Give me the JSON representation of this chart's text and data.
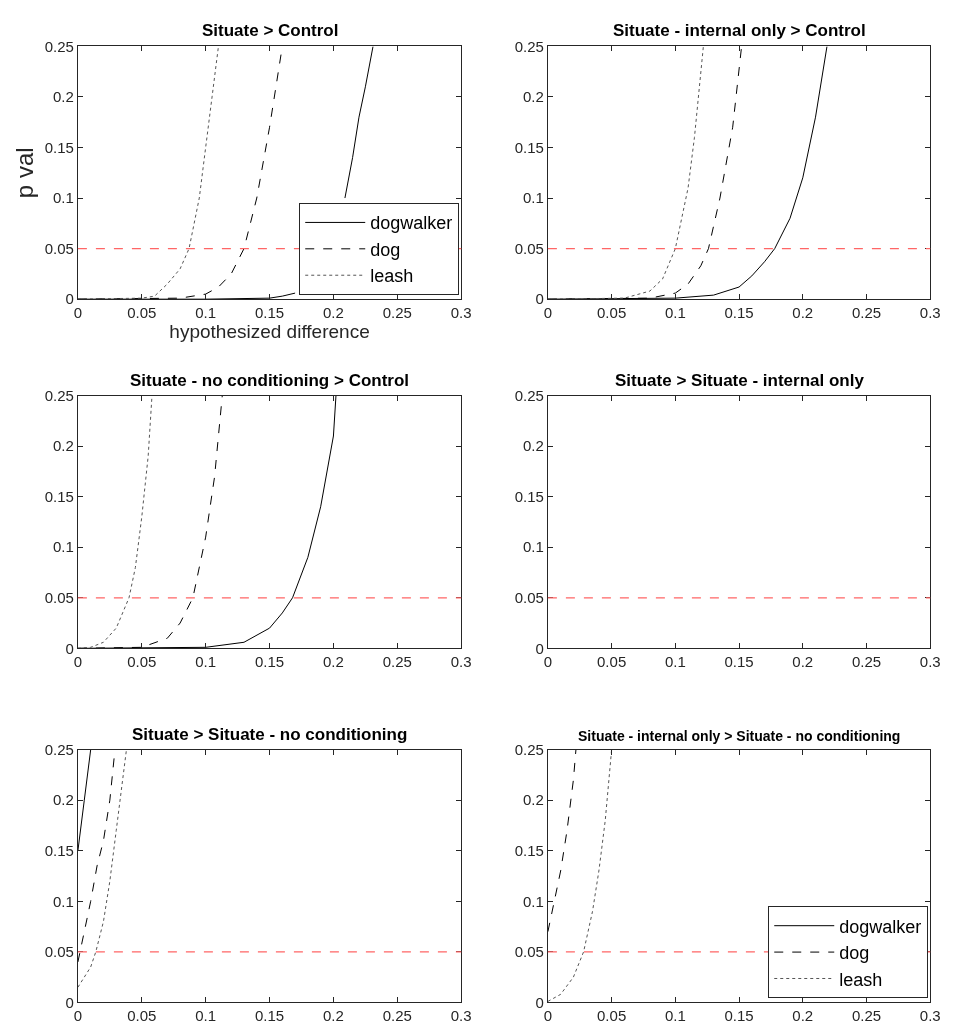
{
  "chart_data": [
    {
      "type": "line",
      "title": "Situate > Control",
      "xlabel": "hypothesized difference",
      "ylabel": "p val",
      "xlim": [
        0,
        0.3
      ],
      "ylim": [
        0,
        0.25
      ],
      "xticks": [
        0,
        0.05,
        0.1,
        0.15,
        0.2,
        0.25,
        0.3
      ],
      "yticks": [
        0,
        0.05,
        0.1,
        0.15,
        0.2,
        0.25
      ],
      "legend": "bottom right",
      "marker": "none",
      "ref_lines": [
        {
          "axis": "y",
          "value": 0.05,
          "color": "#ff6666",
          "line_style": "dashed"
        }
      ],
      "series": [
        {
          "name": "dogwalker",
          "color": "#000000",
          "line_style": "solid",
          "x": [
            0,
            0.1,
            0.15,
            0.16,
            0.17,
            0.175,
            0.18,
            0.19,
            0.2,
            0.209,
            0.215,
            0.22,
            0.225,
            0.231
          ],
          "values": [
            0,
            0,
            0.001,
            0.003,
            0.006,
            null,
            null,
            null,
            null,
            0.1,
            0.14,
            0.18,
            0.21,
            0.25
          ]
        },
        {
          "name": "dog",
          "color": "#000000",
          "line_style": "dashed",
          "x": [
            0,
            0.08,
            0.1,
            0.11,
            0.12,
            0.13,
            0.14,
            0.15,
            0.16
          ],
          "values": [
            0,
            0.001,
            0.005,
            0.012,
            0.025,
            0.05,
            0.1,
            0.17,
            0.25
          ]
        },
        {
          "name": "leash",
          "color": "#555555",
          "line_style": "dotted",
          "x": [
            0,
            0.05,
            0.06,
            0.07,
            0.08,
            0.087,
            0.095,
            0.1,
            0.105,
            0.11
          ],
          "values": [
            0,
            0.001,
            0.003,
            0.015,
            0.03,
            0.05,
            0.1,
            0.15,
            0.2,
            0.25
          ]
        }
      ]
    },
    {
      "type": "line",
      "title": "Situate - internal only > Control",
      "xlim": [
        0,
        0.3
      ],
      "ylim": [
        0,
        0.25
      ],
      "xticks": [
        0,
        0.05,
        0.1,
        0.15,
        0.2,
        0.25,
        0.3
      ],
      "yticks": [
        0,
        0.05,
        0.1,
        0.15,
        0.2,
        0.25
      ],
      "marker": "none",
      "ref_lines": [
        {
          "axis": "y",
          "value": 0.05,
          "color": "#ff6666",
          "line_style": "dashed"
        }
      ],
      "series": [
        {
          "color": "#000000",
          "line_style": "solid",
          "x": [
            0,
            0.1,
            0.13,
            0.15,
            0.16,
            0.17,
            0.178,
            0.19,
            0.2,
            0.21,
            0.219
          ],
          "values": [
            0,
            0.001,
            0.004,
            0.012,
            0.023,
            0.037,
            0.05,
            0.08,
            0.12,
            0.18,
            0.25
          ]
        },
        {
          "color": "#000000",
          "line_style": "dashed",
          "x": [
            0,
            0.08,
            0.1,
            0.11,
            0.12,
            0.126,
            0.135,
            0.145,
            0.152
          ],
          "values": [
            0,
            0.001,
            0.006,
            0.015,
            0.033,
            0.05,
            0.1,
            0.17,
            0.25
          ]
        },
        {
          "color": "#555555",
          "line_style": "dotted",
          "x": [
            0,
            0.06,
            0.08,
            0.09,
            0.1,
            0.11,
            0.115,
            0.122
          ],
          "values": [
            0,
            0.001,
            0.008,
            0.02,
            0.05,
            0.11,
            0.16,
            0.25
          ]
        }
      ]
    },
    {
      "type": "line",
      "title": "Situate - no conditioning > Control",
      "xlim": [
        0,
        0.3
      ],
      "ylim": [
        0,
        0.25
      ],
      "xticks": [
        0,
        0.05,
        0.1,
        0.15,
        0.2,
        0.25,
        0.3
      ],
      "yticks": [
        0,
        0.05,
        0.1,
        0.15,
        0.2,
        0.25
      ],
      "marker": "none",
      "ref_lines": [
        {
          "axis": "y",
          "value": 0.05,
          "color": "#ff6666",
          "line_style": "dashed"
        }
      ],
      "series": [
        {
          "color": "#000000",
          "line_style": "solid",
          "x": [
            0,
            0.1,
            0.13,
            0.15,
            0.16,
            0.168,
            0.18,
            0.19,
            0.2,
            0.202
          ],
          "values": [
            0,
            0.001,
            0.006,
            0.02,
            0.035,
            0.05,
            0.09,
            0.14,
            0.21,
            0.25
          ]
        },
        {
          "color": "#000000",
          "line_style": "dashed",
          "x": [
            0,
            0.05,
            0.07,
            0.08,
            0.09,
            0.1,
            0.107,
            0.113
          ],
          "values": [
            0,
            0.001,
            0.01,
            0.025,
            0.05,
            0.11,
            0.17,
            0.25
          ]
        },
        {
          "color": "#555555",
          "line_style": "dotted",
          "x": [
            0,
            0.01,
            0.02,
            0.03,
            0.04,
            0.045,
            0.05,
            0.055,
            0.058
          ],
          "values": [
            0,
            0.001,
            0.006,
            0.02,
            0.05,
            0.08,
            0.13,
            0.19,
            0.25
          ]
        }
      ]
    },
    {
      "type": "line",
      "title": "Situate > Situate - internal only",
      "xlim": [
        0,
        0.3
      ],
      "ylim": [
        0,
        0.25
      ],
      "xticks": [
        0,
        0.05,
        0.1,
        0.15,
        0.2,
        0.25,
        0.3
      ],
      "yticks": [
        0,
        0.05,
        0.1,
        0.15,
        0.2,
        0.25
      ],
      "ref_lines": [
        {
          "axis": "y",
          "value": 0.05,
          "color": "#ff6666",
          "line_style": "dashed"
        }
      ]
    },
    {
      "type": "line",
      "title": "Situate > Situate - no conditioning",
      "xlim": [
        0,
        0.3
      ],
      "ylim": [
        0,
        0.25
      ],
      "xticks": [
        0,
        0.05,
        0.1,
        0.15,
        0.2,
        0.25,
        0.3
      ],
      "yticks": [
        0,
        0.05,
        0.1,
        0.15,
        0.2,
        0.25
      ],
      "marker": "none",
      "ref_lines": [
        {
          "axis": "y",
          "value": 0.05,
          "color": "#ff6666",
          "line_style": "dashed"
        }
      ],
      "series": [
        {
          "color": "#000000",
          "line_style": "solid",
          "x": [
            0,
            0.005,
            0.01
          ],
          "values": [
            0.15,
            0.2,
            0.25
          ]
        },
        {
          "color": "#000000",
          "line_style": "dashed",
          "x": [
            0,
            0.005,
            0.01,
            0.015,
            0.02,
            0.025,
            0.029
          ],
          "values": [
            0.04,
            0.07,
            0.1,
            0.135,
            0.16,
            0.2,
            0.25
          ]
        },
        {
          "color": "#555555",
          "line_style": "dotted",
          "x": [
            0,
            0.01,
            0.014,
            0.02,
            0.025,
            0.03,
            0.035,
            0.038
          ],
          "values": [
            0.015,
            0.035,
            0.05,
            0.08,
            0.12,
            0.17,
            0.22,
            0.25
          ]
        }
      ]
    },
    {
      "type": "line",
      "title": "Situate - internal only > Situate - no conditioning",
      "xlim": [
        0,
        0.3
      ],
      "ylim": [
        0,
        0.25
      ],
      "xticks": [
        0,
        0.05,
        0.1,
        0.15,
        0.2,
        0.25,
        0.3
      ],
      "yticks": [
        0,
        0.05,
        0.1,
        0.15,
        0.2,
        0.25
      ],
      "legend": "bottom right",
      "marker": "none",
      "ref_lines": [
        {
          "axis": "y",
          "value": 0.05,
          "color": "#ff6666",
          "line_style": "dashed"
        }
      ],
      "series": [
        {
          "name": "dogwalker",
          "color": "#000000",
          "line_style": "solid"
        },
        {
          "name": "dog",
          "color": "#000000",
          "line_style": "dashed",
          "x": [
            0,
            0.005,
            0.01,
            0.015,
            0.02,
            0.022
          ],
          "values": [
            0.07,
            0.1,
            0.13,
            0.17,
            0.22,
            0.25
          ]
        },
        {
          "name": "leash",
          "color": "#555555",
          "line_style": "dotted",
          "x": [
            0,
            0.01,
            0.02,
            0.028,
            0.035,
            0.04,
            0.045,
            0.05
          ],
          "values": [
            0.001,
            0.008,
            0.025,
            0.05,
            0.09,
            0.13,
            0.18,
            0.25
          ]
        }
      ]
    }
  ]
}
